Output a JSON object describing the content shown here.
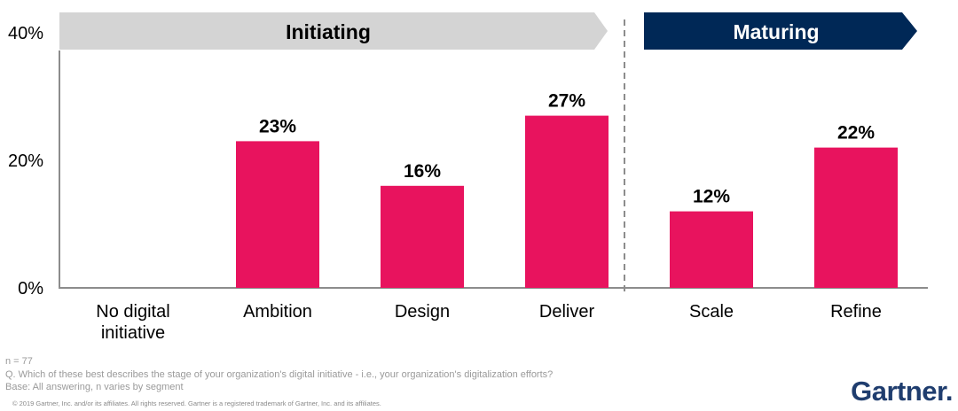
{
  "chart_data": {
    "type": "bar",
    "categories": [
      "No digital initiative",
      "Ambition",
      "Design",
      "Deliver",
      "Scale",
      "Refine"
    ],
    "category_lines": [
      [
        "No digital",
        "initiative"
      ],
      [
        "Ambition"
      ],
      [
        "Design"
      ],
      [
        "Deliver"
      ],
      [
        "Scale"
      ],
      [
        "Refine"
      ]
    ],
    "values": [
      0,
      23,
      16,
      27,
      12,
      22
    ],
    "value_labels": [
      "",
      "23%",
      "16%",
      "27%",
      "12%",
      "22%"
    ],
    "ylim": [
      0,
      40
    ],
    "yticks": [
      0,
      20,
      40
    ],
    "ytick_labels": [
      "0%",
      "20%",
      "40%"
    ],
    "grid": false,
    "phases": [
      {
        "label": "Initiating",
        "categories": [
          "No digital initiative",
          "Ambition",
          "Design",
          "Deliver"
        ]
      },
      {
        "label": "Maturing",
        "categories": [
          "Scale",
          "Refine"
        ]
      }
    ]
  },
  "colors": {
    "bar": "#e8135e",
    "initiating_arrow": "#d4d4d4",
    "initiating_text": "#000000",
    "maturing_arrow": "#002856",
    "maturing_text": "#ffffff",
    "axis": "#8c8c8c",
    "divider": "#8c8c8c"
  },
  "footnotes": {
    "n": "n = 77",
    "question": "Q. Which of these best describes the stage of your organization's digital initiative - i.e., your organization's digitalization efforts?",
    "base": "Base: All answering, n varies by segment",
    "copyright": "© 2019 Gartner, Inc. and/or its affiliates. All rights reserved. Gartner is a registered trademark of Gartner, Inc. and its affiliates."
  },
  "logo": "Gartner."
}
